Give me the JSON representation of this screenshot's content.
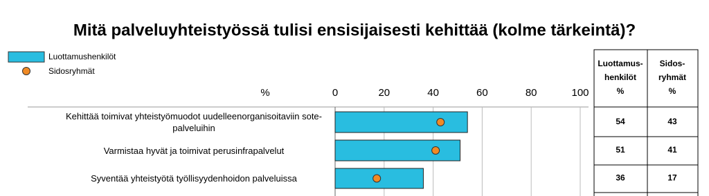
{
  "chart_data": {
    "type": "bar-dot",
    "title": "Mitä palveluyhteistyössä tulisi ensisijaisesti kehittää (kolme tärkeintä)?",
    "x_label": "%",
    "categories": [
      "Kehittää toimivat yhteistyömuodot uudelleenorganisoitaviin sote-palveluihin",
      "Varmistaa hyvät ja toimivat perusinfrapalvelut",
      "Syventää yhteistyötä työllisyydenhoidon palveluissa"
    ],
    "series": [
      {
        "name": "Luottamushenkilöt",
        "color": "#29bde0",
        "values": [
          54,
          51,
          36
        ]
      },
      {
        "name": "Sidosryhmät",
        "color": "#f08a24",
        "values": [
          43,
          41,
          17
        ]
      }
    ],
    "xlim": [
      0,
      100
    ],
    "xticks": [
      0,
      20,
      40,
      60,
      80,
      100
    ],
    "grid": true,
    "table_headers": [
      [
        "Luottamus-",
        "henkilöt",
        "%"
      ],
      [
        "Sidos-",
        "ryhmät",
        "%"
      ]
    ]
  }
}
